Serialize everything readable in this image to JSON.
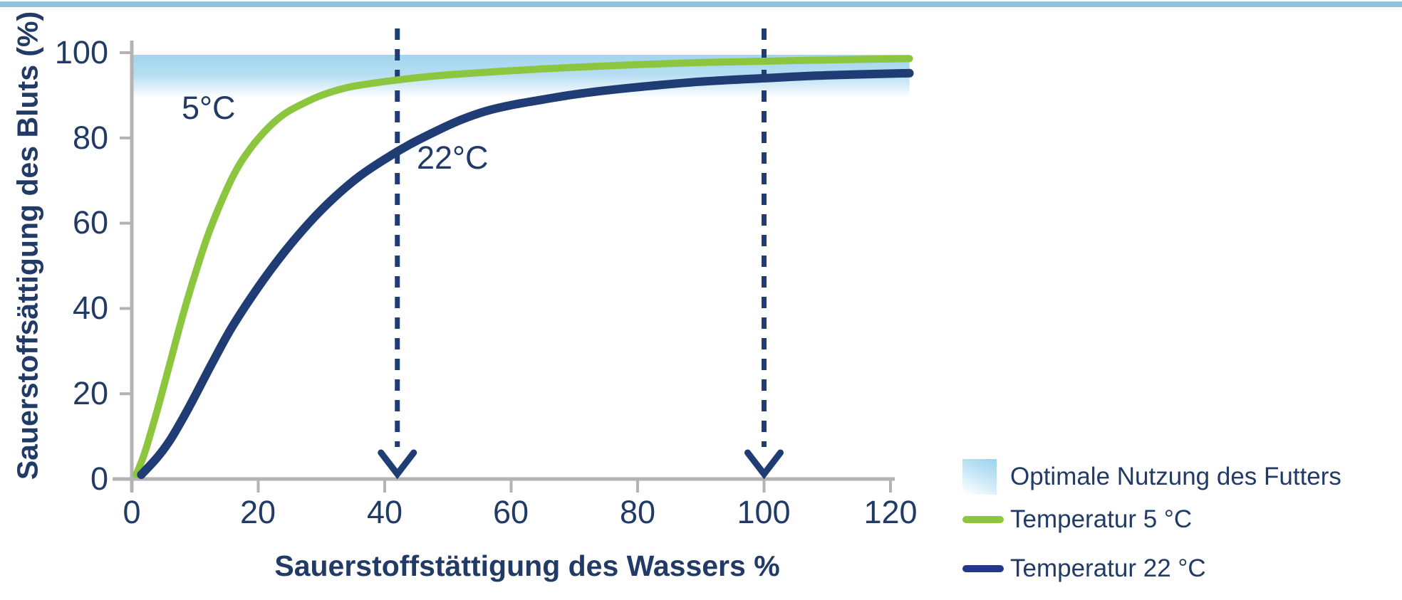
{
  "colors": {
    "top_bar": "#8ec5dc",
    "text_navy": "#213a66",
    "axis_gray": "#b3b3b3",
    "curve_5c_green": "#8cc63f",
    "curve_22c_navy": "#1f3c74",
    "band_blue": "#a2d5ee",
    "legend_22c_swatch": "#23378c"
  },
  "chart_data": {
    "type": "line",
    "title": "",
    "xlabel": "Sauerstoffstättigung des Wassers %",
    "ylabel": "Sauerstoffsättigung des Bluts (%)",
    "xlim": [
      0,
      120
    ],
    "ylim": [
      0,
      100
    ],
    "x_ticks": [
      0,
      20,
      40,
      60,
      80,
      100,
      120
    ],
    "y_ticks": [
      0,
      20,
      40,
      60,
      80,
      100
    ],
    "x_tick_labels": [
      "0",
      "20",
      "40",
      "60",
      "80",
      "100",
      "120"
    ],
    "y_tick_labels": [
      "0",
      "20",
      "40",
      "60",
      "80",
      "100"
    ],
    "grid": false,
    "legend_position": "bottom-right",
    "series": [
      {
        "name": "Temperatur 5 °C",
        "annotation": "5°C",
        "color": "#8cc63f",
        "x": [
          0.7,
          2,
          4,
          6,
          8,
          10,
          12,
          14,
          16,
          18,
          21,
          24,
          27,
          30,
          34,
          38,
          42,
          47,
          52,
          58,
          65,
          72,
          80,
          90,
          100,
          110,
          123
        ],
        "y": [
          1,
          6,
          16,
          27,
          38,
          48,
          57,
          64.5,
          71,
          76,
          81.5,
          85.5,
          88,
          90,
          91.8,
          92.8,
          93.6,
          94.4,
          95,
          95.6,
          96.2,
          96.7,
          97.2,
          97.7,
          98,
          98.3,
          98.6
        ]
      },
      {
        "name": "Temperatur 22 °C",
        "annotation": "22°C",
        "color": "#1f3c74",
        "x": [
          1.5,
          4,
          6,
          8,
          10,
          13,
          16,
          20,
          24,
          28,
          32,
          36,
          40,
          44,
          48,
          52,
          56,
          60,
          65,
          70,
          76,
          82,
          90,
          100,
          110,
          123
        ],
        "y": [
          1,
          5,
          9,
          14,
          19.5,
          28,
          36,
          45,
          53,
          60,
          66,
          71,
          75,
          78.5,
          81.5,
          84.2,
          86.3,
          87.7,
          89,
          90.2,
          91.3,
          92.2,
          93.2,
          94,
          94.7,
          95.2
        ]
      }
    ],
    "band": {
      "label": "Optimale Nutzung des Futters",
      "y_from": 90,
      "y_to": 100
    },
    "arrows_x": [
      42,
      100
    ]
  },
  "annotations": [
    {
      "text": "5°C"
    },
    {
      "text": "22°C"
    }
  ],
  "legend": {
    "items": [
      {
        "label": "Optimale Nutzung des Futters",
        "swatch": "gradient-band"
      },
      {
        "label": "Temperatur 5 °C",
        "swatch": "line",
        "color": "#8cc63f"
      },
      {
        "label": "Temperatur 22 °C",
        "swatch": "line",
        "color": "#23378c"
      }
    ]
  }
}
